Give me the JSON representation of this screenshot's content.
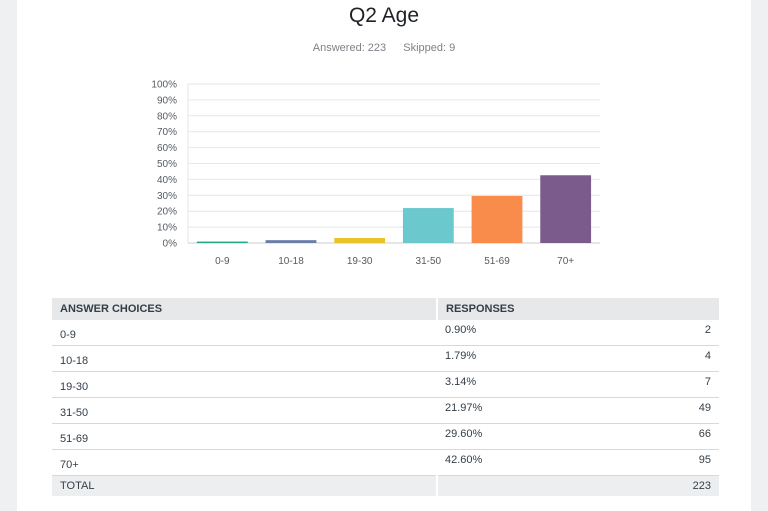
{
  "header": {
    "title": "Q2 Age",
    "answered": "Answered: 223",
    "skipped": "Skipped: 9"
  },
  "chart_data": {
    "type": "bar",
    "categories": [
      "0-9",
      "10-18",
      "19-30",
      "31-50",
      "51-69",
      "70+"
    ],
    "values": [
      0.9,
      1.79,
      3.14,
      21.97,
      29.6,
      42.6
    ],
    "colors": [
      "#26a78f",
      "#6b7fa6",
      "#e8c32a",
      "#6bc8cc",
      "#f98b4b",
      "#7b5b8c"
    ],
    "yticks": [
      "0%",
      "10%",
      "20%",
      "30%",
      "40%",
      "50%",
      "60%",
      "70%",
      "80%",
      "90%",
      "100%"
    ],
    "ylim": [
      0,
      100
    ],
    "grid": true,
    "title": "",
    "xlabel": "",
    "ylabel": ""
  },
  "table": {
    "headers": {
      "choices": "ANSWER CHOICES",
      "responses": "RESPONSES"
    },
    "rows": [
      {
        "choice": "0-9",
        "percent": "0.90%",
        "count": "2"
      },
      {
        "choice": "10-18",
        "percent": "1.79%",
        "count": "4"
      },
      {
        "choice": "19-30",
        "percent": "3.14%",
        "count": "7"
      },
      {
        "choice": "31-50",
        "percent": "21.97%",
        "count": "49"
      },
      {
        "choice": "51-69",
        "percent": "29.60%",
        "count": "66"
      },
      {
        "choice": "70+",
        "percent": "42.60%",
        "count": "95"
      }
    ],
    "total_label": "TOTAL",
    "total_count": "223"
  }
}
